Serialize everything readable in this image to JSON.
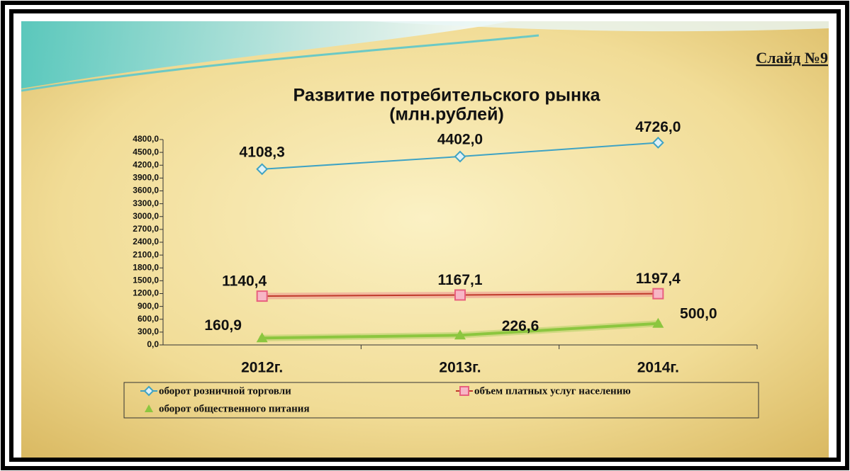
{
  "slide_label": "Слайд №9",
  "chart_data": {
    "type": "line",
    "title": [
      "Развитие потребительского рынка",
      "(млн.рублей)"
    ],
    "categories": [
      "2012г.",
      "2013г.",
      "2014г."
    ],
    "series": [
      {
        "name": "оборот розничной торговли",
        "color": "#3fa3c4",
        "marker": "diamond",
        "values": [
          4108.3,
          4402.0,
          4726.0
        ],
        "value_labels": [
          "4108,3",
          "4402,0",
          "4726,0"
        ]
      },
      {
        "name": "объем платных услуг населению",
        "color": "#e8607e",
        "marker": "square",
        "values": [
          1140.4,
          1167.1,
          1197.4
        ],
        "value_labels": [
          "1140,4",
          "1167,1",
          "1197,4"
        ]
      },
      {
        "name": "оборот общественного питания",
        "color": "#8cc63f",
        "marker": "triangle",
        "values": [
          160.9,
          226.6,
          500.0
        ],
        "value_labels": [
          "160,9",
          "226,6",
          "500,0"
        ]
      }
    ],
    "ylim": [
      0,
      4800
    ],
    "yticks": [
      {
        "value": 0,
        "label": "0,0"
      },
      {
        "value": 300,
        "label": "300,0"
      },
      {
        "value": 600,
        "label": "600,0"
      },
      {
        "value": 900,
        "label": "900,0"
      },
      {
        "value": 1200,
        "label": "1200,0"
      },
      {
        "value": 1500,
        "label": "1500,0"
      },
      {
        "value": 1800,
        "label": "1800,0"
      },
      {
        "value": 2100,
        "label": "2100,0"
      },
      {
        "value": 2400,
        "label": "2400,0"
      },
      {
        "value": 2700,
        "label": "2700,0"
      },
      {
        "value": 3000,
        "label": "3000,0"
      },
      {
        "value": 3300,
        "label": "3300,0"
      },
      {
        "value": 3600,
        "label": "3600,0"
      },
      {
        "value": 3900,
        "label": "3900,0"
      },
      {
        "value": 4200,
        "label": "4200,0"
      },
      {
        "value": 4500,
        "label": "4500,0"
      },
      {
        "value": 4800,
        "label": "4800,0"
      }
    ],
    "legend": "bottom"
  }
}
